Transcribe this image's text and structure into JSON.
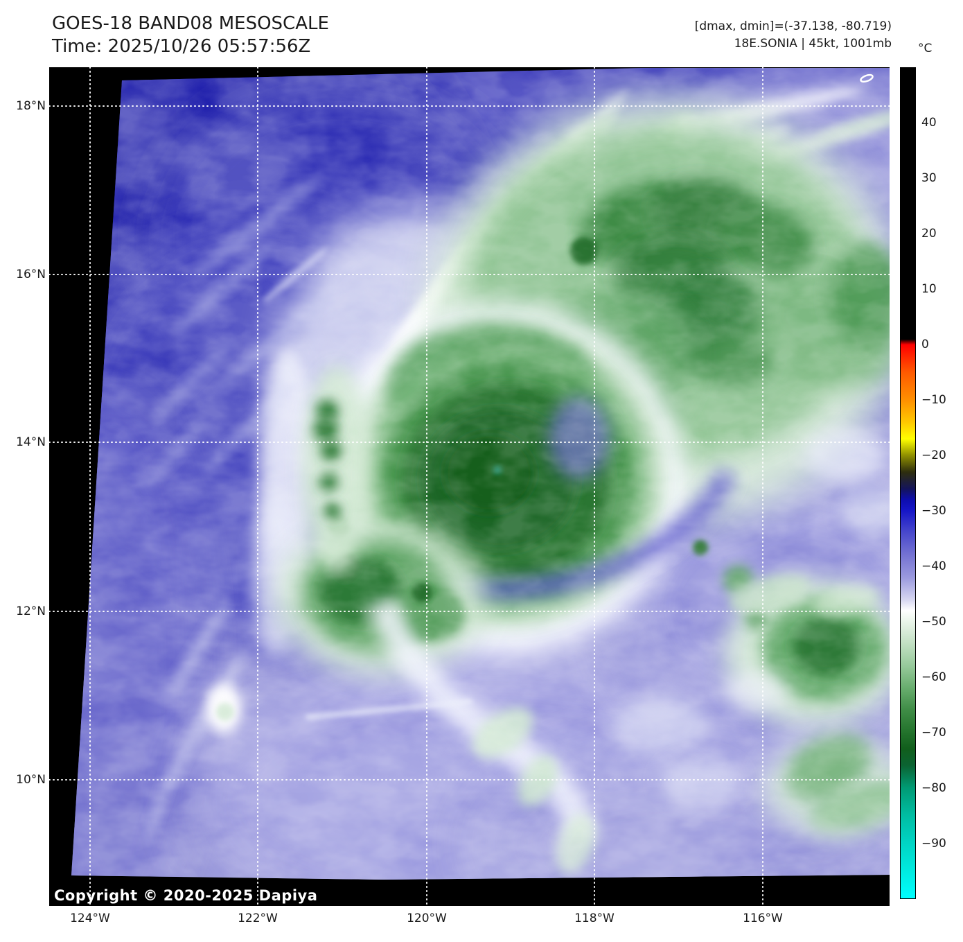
{
  "header": {
    "title": "GOES-18 BAND08 MESOSCALE",
    "time_line": "Time: 2025/10/26 05:57:56Z",
    "dmax_dmin_line": "[dmax, dmin]=(-37.138, -80.719)",
    "storm_line": "18E.SONIA | 45kt, 1001mb"
  },
  "chart_data": {
    "type": "heatmap",
    "title": "GOES-18 BAND08 MESOSCALE",
    "time_utc": "2025/10/26 05:57:56Z",
    "scene": "Infrared brightness-temperature satellite image of a tropical storm; coldest cloud tops (green, about -60 to -81 C) form a central dense overcast east of center over blue/lavender mid-level moisture (about -28 to -45 C)",
    "stats": {
      "dmax_c": -37.138,
      "dmin_c": -80.719
    },
    "storm": {
      "designation": "18E.SONIA",
      "intensity_wind": "45kt",
      "pressure": "1001mb"
    },
    "x_axis": {
      "tick_labels": [
        "124°W",
        "122°W",
        "120°W",
        "118°W",
        "116°W"
      ]
    },
    "y_axis": {
      "tick_labels": [
        "18°N",
        "16°N",
        "14°N",
        "12°N",
        "10°N"
      ]
    },
    "grid": {
      "style": "dotted",
      "color": "#ffffff"
    },
    "colorbar": {
      "unit_label": "°C",
      "tick_labels": [
        "40",
        "30",
        "20",
        "10",
        "0",
        "−10",
        "−20",
        "−30",
        "−40",
        "−50",
        "−60",
        "−70",
        "−80",
        "−90"
      ],
      "tick_values": [
        40,
        30,
        20,
        10,
        0,
        -10,
        -20,
        -30,
        -40,
        -50,
        -60,
        -70,
        -80,
        -90
      ],
      "range_c": [
        50,
        -100
      ],
      "gradient_stops": [
        {
          "value": 50,
          "color": "#000000"
        },
        {
          "value": 1,
          "color": "#000000"
        },
        {
          "value": 0,
          "color": "#ff0000"
        },
        {
          "value": -5,
          "color": "#ff5a00"
        },
        {
          "value": -10,
          "color": "#ff9000"
        },
        {
          "value": -14,
          "color": "#ffc800"
        },
        {
          "value": -17,
          "color": "#ffff00"
        },
        {
          "value": -20,
          "color": "#8f8f00"
        },
        {
          "value": -23,
          "color": "#2e2e0e"
        },
        {
          "value": -26,
          "color": "#14145a"
        },
        {
          "value": -28,
          "color": "#0d0dae"
        },
        {
          "value": -30,
          "color": "#1616c8"
        },
        {
          "value": -34,
          "color": "#4949cc"
        },
        {
          "value": -38,
          "color": "#7573d2"
        },
        {
          "value": -42,
          "color": "#9a99de"
        },
        {
          "value": -46,
          "color": "#d5d5f0"
        },
        {
          "value": -48,
          "color": "#ffffff"
        },
        {
          "value": -50,
          "color": "#eaf5ea"
        },
        {
          "value": -54,
          "color": "#c2e0c3"
        },
        {
          "value": -58,
          "color": "#97ca9b"
        },
        {
          "value": -62,
          "color": "#68ad6e"
        },
        {
          "value": -66,
          "color": "#3f8c46"
        },
        {
          "value": -70,
          "color": "#23732c"
        },
        {
          "value": -73,
          "color": "#115e1c"
        },
        {
          "value": -76,
          "color": "#0b6332"
        },
        {
          "value": -80,
          "color": "#009a74"
        },
        {
          "value": -85,
          "color": "#00bda2"
        },
        {
          "value": -90,
          "color": "#00d4c4"
        },
        {
          "value": -95,
          "color": "#00eadf"
        },
        {
          "value": -100,
          "color": "#00ffff"
        }
      ]
    },
    "copyright": "Copyright © 2020-2025 Dapiya"
  }
}
